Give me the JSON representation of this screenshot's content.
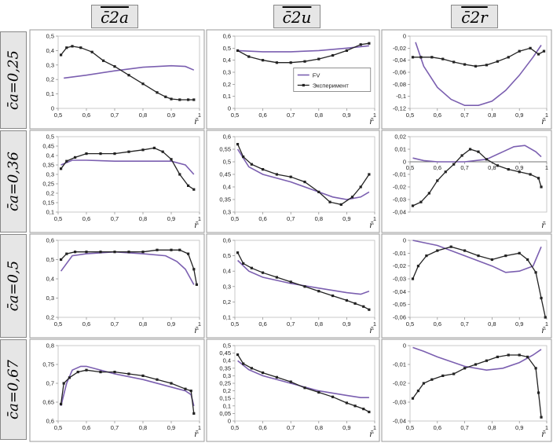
{
  "column_headers": [
    "c̄2a",
    "c̄2u",
    "c̄2r"
  ],
  "row_headers": [
    "c̄a=0,25",
    "c̄a=0,36",
    "c̄a=0,5",
    "c̄a=0,67"
  ],
  "colors": {
    "fv": "#7b5fb0",
    "experiment": "#222222",
    "frame": "#9a9a9a"
  },
  "chart_data": [
    {
      "type": "line",
      "row": 0,
      "col": 0,
      "xlabel": "r̄",
      "xlim": [
        0.5,
        1
      ],
      "ylim": [
        0,
        0.5
      ],
      "xticks": [
        "0,5",
        "0,6",
        "0,7",
        "0,8",
        "0,9",
        "1"
      ],
      "yticks": [
        "0",
        "0,1",
        "0,2",
        "0,3",
        "0,4",
        "0,5"
      ],
      "series": [
        {
          "name": "FV",
          "x": [
            0.52,
            0.6,
            0.7,
            0.8,
            0.9,
            0.95,
            0.98
          ],
          "y": [
            0.21,
            0.23,
            0.26,
            0.285,
            0.295,
            0.29,
            0.265
          ]
        },
        {
          "name": "Эксперимент",
          "x": [
            0.51,
            0.53,
            0.55,
            0.58,
            0.62,
            0.66,
            0.7,
            0.75,
            0.8,
            0.85,
            0.88,
            0.9,
            0.93,
            0.96,
            0.98
          ],
          "y": [
            0.37,
            0.42,
            0.43,
            0.42,
            0.39,
            0.33,
            0.29,
            0.23,
            0.17,
            0.11,
            0.08,
            0.065,
            0.06,
            0.06,
            0.06
          ]
        }
      ]
    },
    {
      "type": "line",
      "row": 0,
      "col": 1,
      "xlabel": "r̄",
      "xlim": [
        0.5,
        1
      ],
      "ylim": [
        0,
        0.6
      ],
      "xticks": [
        "0,5",
        "0,6",
        "0,7",
        "0,8",
        "0,9",
        "1"
      ],
      "yticks": [
        "0",
        "0,1",
        "0,2",
        "0,3",
        "0,4",
        "0,5",
        "0,6"
      ],
      "legend": {
        "position": "center",
        "entries": [
          "FV",
          "Эксперимент"
        ]
      },
      "series": [
        {
          "name": "FV",
          "x": [
            0.51,
            0.6,
            0.7,
            0.8,
            0.9,
            0.98
          ],
          "y": [
            0.48,
            0.47,
            0.47,
            0.48,
            0.5,
            0.52
          ]
        },
        {
          "name": "Эксперимент",
          "x": [
            0.51,
            0.55,
            0.6,
            0.65,
            0.7,
            0.75,
            0.8,
            0.85,
            0.9,
            0.95,
            0.98
          ],
          "y": [
            0.48,
            0.43,
            0.4,
            0.38,
            0.38,
            0.39,
            0.41,
            0.44,
            0.48,
            0.53,
            0.54
          ]
        }
      ]
    },
    {
      "type": "line",
      "row": 0,
      "col": 2,
      "xlabel": "r̄",
      "xlim": [
        0.5,
        1
      ],
      "ylim": [
        -0.12,
        0
      ],
      "xticks": [
        "0,5",
        "0,6",
        "0,7",
        "0,8",
        "0,9",
        "1"
      ],
      "yticks": [
        "0",
        "-0,02",
        "-0,04",
        "-0,06",
        "-0,08",
        "-0,1",
        "-0,12"
      ],
      "series": [
        {
          "name": "FV",
          "x": [
            0.52,
            0.55,
            0.6,
            0.65,
            0.7,
            0.75,
            0.8,
            0.85,
            0.9,
            0.95,
            0.98
          ],
          "y": [
            -0.01,
            -0.05,
            -0.085,
            -0.105,
            -0.115,
            -0.115,
            -0.108,
            -0.09,
            -0.065,
            -0.035,
            -0.015
          ]
        },
        {
          "name": "Эксперимент",
          "x": [
            0.51,
            0.54,
            0.58,
            0.62,
            0.66,
            0.7,
            0.74,
            0.78,
            0.82,
            0.86,
            0.9,
            0.94,
            0.97,
            0.99
          ],
          "y": [
            -0.035,
            -0.035,
            -0.035,
            -0.038,
            -0.043,
            -0.047,
            -0.05,
            -0.048,
            -0.042,
            -0.035,
            -0.025,
            -0.02,
            -0.03,
            -0.025
          ]
        }
      ]
    },
    {
      "type": "line",
      "row": 1,
      "col": 0,
      "xlabel": "r̄",
      "xlim": [
        0.5,
        1
      ],
      "ylim": [
        0.1,
        0.5
      ],
      "xticks": [
        "0,5",
        "0,6",
        "0,7",
        "0,8",
        "0,9",
        "1"
      ],
      "yticks": [
        "0,1",
        "0,15",
        "0,2",
        "0,25",
        "0,3",
        "0,35",
        "0,4",
        "0,45",
        "0,5"
      ],
      "series": [
        {
          "name": "FV",
          "x": [
            0.51,
            0.55,
            0.6,
            0.7,
            0.8,
            0.9,
            0.95,
            0.98
          ],
          "y": [
            0.35,
            0.375,
            0.375,
            0.37,
            0.37,
            0.37,
            0.35,
            0.3
          ]
        },
        {
          "name": "Эксперимент",
          "x": [
            0.51,
            0.53,
            0.56,
            0.6,
            0.65,
            0.7,
            0.75,
            0.8,
            0.84,
            0.87,
            0.9,
            0.93,
            0.96,
            0.98
          ],
          "y": [
            0.33,
            0.37,
            0.39,
            0.41,
            0.41,
            0.41,
            0.42,
            0.43,
            0.44,
            0.42,
            0.38,
            0.3,
            0.24,
            0.22
          ]
        }
      ]
    },
    {
      "type": "line",
      "row": 1,
      "col": 1,
      "xlabel": "r̄",
      "xlim": [
        0.5,
        1
      ],
      "ylim": [
        0.3,
        0.6
      ],
      "xticks": [
        "0,5",
        "0,6",
        "0,7",
        "0,8",
        "0,9",
        "1"
      ],
      "yticks": [
        "0,3",
        "0,35",
        "0,4",
        "0,45",
        "0,5",
        "0,55",
        "0,6"
      ],
      "series": [
        {
          "name": "FV",
          "x": [
            0.51,
            0.55,
            0.6,
            0.7,
            0.8,
            0.85,
            0.9,
            0.95,
            0.98
          ],
          "y": [
            0.55,
            0.48,
            0.45,
            0.42,
            0.38,
            0.36,
            0.35,
            0.36,
            0.38
          ]
        },
        {
          "name": "Эксперимент",
          "x": [
            0.51,
            0.53,
            0.56,
            0.6,
            0.65,
            0.7,
            0.75,
            0.8,
            0.84,
            0.88,
            0.92,
            0.95,
            0.98
          ],
          "y": [
            0.57,
            0.52,
            0.49,
            0.47,
            0.45,
            0.44,
            0.42,
            0.38,
            0.34,
            0.33,
            0.36,
            0.4,
            0.45
          ]
        }
      ]
    },
    {
      "type": "line",
      "row": 1,
      "col": 2,
      "xlabel": "r̄",
      "xlim": [
        0.5,
        1
      ],
      "ylim": [
        -0.04,
        0.02
      ],
      "xticks": [
        "0,5",
        "0,6",
        "0,7",
        "0,8",
        "0,9",
        "1"
      ],
      "yticks": [
        "0,02",
        "0,01",
        "0",
        "-0,01",
        "-0,02",
        "-0,03",
        "-0,04"
      ],
      "series": [
        {
          "name": "FV",
          "x": [
            0.51,
            0.55,
            0.6,
            0.7,
            0.78,
            0.84,
            0.88,
            0.92,
            0.96,
            0.98
          ],
          "y": [
            0.003,
            0.001,
            0,
            0,
            0.002,
            0.008,
            0.012,
            0.013,
            0.008,
            0.004
          ]
        },
        {
          "name": "Эксперимент",
          "x": [
            0.51,
            0.54,
            0.57,
            0.6,
            0.63,
            0.66,
            0.69,
            0.72,
            0.75,
            0.78,
            0.82,
            0.86,
            0.9,
            0.94,
            0.97,
            0.98
          ],
          "y": [
            -0.035,
            -0.032,
            -0.025,
            -0.015,
            -0.008,
            -0.002,
            0.005,
            0.01,
            0.008,
            0.002,
            -0.003,
            -0.006,
            -0.008,
            -0.01,
            -0.013,
            -0.02
          ]
        }
      ]
    },
    {
      "type": "line",
      "row": 2,
      "col": 0,
      "xlabel": "r̄",
      "xlim": [
        0.5,
        1
      ],
      "ylim": [
        0.2,
        0.6
      ],
      "xticks": [
        "0,5",
        "0,6",
        "0,7",
        "0,8",
        "0,9",
        "1"
      ],
      "yticks": [
        "0,2",
        "0,3",
        "0,4",
        "0,5",
        "0,6"
      ],
      "series": [
        {
          "name": "FV",
          "x": [
            0.51,
            0.55,
            0.6,
            0.7,
            0.8,
            0.88,
            0.92,
            0.95,
            0.98
          ],
          "y": [
            0.44,
            0.52,
            0.53,
            0.54,
            0.53,
            0.52,
            0.49,
            0.45,
            0.37
          ]
        },
        {
          "name": "Эксперимент",
          "x": [
            0.51,
            0.53,
            0.56,
            0.6,
            0.65,
            0.7,
            0.75,
            0.8,
            0.85,
            0.9,
            0.93,
            0.96,
            0.98,
            0.99
          ],
          "y": [
            0.5,
            0.53,
            0.54,
            0.54,
            0.54,
            0.54,
            0.54,
            0.54,
            0.55,
            0.55,
            0.55,
            0.53,
            0.45,
            0.37
          ]
        }
      ]
    },
    {
      "type": "line",
      "row": 2,
      "col": 1,
      "xlabel": "r̄",
      "xlim": [
        0.5,
        1
      ],
      "ylim": [
        0.1,
        0.6
      ],
      "xticks": [
        "0,5",
        "0,6",
        "0,7",
        "0,8",
        "0,9",
        "1"
      ],
      "yticks": [
        "0,1",
        "0,2",
        "0,3",
        "0,4",
        "0,5",
        "0,6"
      ],
      "series": [
        {
          "name": "FV",
          "x": [
            0.51,
            0.55,
            0.6,
            0.7,
            0.8,
            0.9,
            0.95,
            0.98
          ],
          "y": [
            0.47,
            0.4,
            0.36,
            0.32,
            0.29,
            0.26,
            0.25,
            0.27
          ]
        },
        {
          "name": "Эксперимент",
          "x": [
            0.51,
            0.53,
            0.56,
            0.6,
            0.65,
            0.7,
            0.75,
            0.8,
            0.85,
            0.9,
            0.93,
            0.96,
            0.98
          ],
          "y": [
            0.52,
            0.45,
            0.42,
            0.39,
            0.36,
            0.33,
            0.3,
            0.27,
            0.24,
            0.21,
            0.19,
            0.17,
            0.15
          ]
        }
      ]
    },
    {
      "type": "line",
      "row": 2,
      "col": 2,
      "xlabel": "r̄",
      "xlim": [
        0.5,
        1
      ],
      "ylim": [
        -0.06,
        0
      ],
      "xticks": [
        "0,5",
        "0,6",
        "0,7",
        "0,8",
        "0,9",
        "1"
      ],
      "yticks": [
        "0",
        "-0,01",
        "-0,02",
        "-0,03",
        "-0,04",
        "-0,05",
        "-0,06"
      ],
      "series": [
        {
          "name": "FV",
          "x": [
            0.51,
            0.6,
            0.7,
            0.8,
            0.85,
            0.9,
            0.95,
            0.98
          ],
          "y": [
            0,
            -0.004,
            -0.012,
            -0.02,
            -0.025,
            -0.024,
            -0.02,
            -0.005
          ]
        },
        {
          "name": "Эксперимент",
          "x": [
            0.51,
            0.53,
            0.56,
            0.6,
            0.65,
            0.7,
            0.75,
            0.8,
            0.85,
            0.9,
            0.93,
            0.96,
            0.98,
            0.995
          ],
          "y": [
            -0.03,
            -0.02,
            -0.012,
            -0.008,
            -0.005,
            -0.008,
            -0.012,
            -0.015,
            -0.012,
            -0.01,
            -0.015,
            -0.025,
            -0.045,
            -0.06
          ]
        }
      ]
    },
    {
      "type": "line",
      "row": 3,
      "col": 0,
      "xlabel": "r̄",
      "xlim": [
        0.5,
        1
      ],
      "ylim": [
        0.6,
        0.8
      ],
      "xticks": [
        "0,5",
        "0,6",
        "0,7",
        "0,8",
        "0,9",
        "1"
      ],
      "yticks": [
        "0,6",
        "0,65",
        "0,7",
        "0,75",
        "0,8"
      ],
      "series": [
        {
          "name": "FV",
          "x": [
            0.51,
            0.53,
            0.55,
            0.58,
            0.6,
            0.65,
            0.7,
            0.8,
            0.9,
            0.95,
            0.97,
            0.98
          ],
          "y": [
            0.64,
            0.7,
            0.735,
            0.745,
            0.745,
            0.735,
            0.725,
            0.71,
            0.69,
            0.68,
            0.67,
            0.64
          ]
        },
        {
          "name": "Эксперимент",
          "x": [
            0.51,
            0.52,
            0.54,
            0.57,
            0.6,
            0.65,
            0.7,
            0.75,
            0.8,
            0.85,
            0.9,
            0.95,
            0.97,
            0.98
          ],
          "y": [
            0.645,
            0.7,
            0.715,
            0.73,
            0.735,
            0.73,
            0.73,
            0.725,
            0.72,
            0.71,
            0.7,
            0.685,
            0.68,
            0.62
          ]
        }
      ]
    },
    {
      "type": "line",
      "row": 3,
      "col": 1,
      "xlabel": "r̄",
      "xlim": [
        0.5,
        1
      ],
      "ylim": [
        0,
        0.5
      ],
      "xticks": [
        "0,5",
        "0,6",
        "0,7",
        "0,8",
        "0,9",
        "1"
      ],
      "yticks": [
        "0",
        "0,05",
        "0,1",
        "0,15",
        "0,2",
        "0,25",
        "0,3",
        "0,35",
        "0,4",
        "0,45",
        "0,5"
      ],
      "series": [
        {
          "name": "FV",
          "x": [
            0.51,
            0.55,
            0.6,
            0.7,
            0.8,
            0.9,
            0.95,
            0.98
          ],
          "y": [
            0.4,
            0.34,
            0.3,
            0.25,
            0.2,
            0.17,
            0.155,
            0.155
          ]
        },
        {
          "name": "Эксперимент",
          "x": [
            0.51,
            0.53,
            0.56,
            0.6,
            0.65,
            0.7,
            0.75,
            0.8,
            0.85,
            0.9,
            0.93,
            0.96,
            0.98
          ],
          "y": [
            0.44,
            0.38,
            0.35,
            0.32,
            0.29,
            0.26,
            0.22,
            0.19,
            0.16,
            0.12,
            0.1,
            0.08,
            0.06
          ]
        }
      ]
    },
    {
      "type": "line",
      "row": 3,
      "col": 2,
      "xlabel": "r̄",
      "xlim": [
        0.5,
        1
      ],
      "ylim": [
        -0.04,
        0
      ],
      "xticks": [
        "0,5",
        "0,6",
        "0,7",
        "0,8",
        "0,9",
        "1"
      ],
      "yticks": [
        "0",
        "-0,01",
        "-0,02",
        "-0,03",
        "-0,04"
      ],
      "series": [
        {
          "name": "FV",
          "x": [
            0.51,
            0.55,
            0.6,
            0.7,
            0.78,
            0.84,
            0.9,
            0.95,
            0.98
          ],
          "y": [
            -0.001,
            -0.003,
            -0.006,
            -0.011,
            -0.013,
            -0.012,
            -0.009,
            -0.005,
            -0.002
          ]
        },
        {
          "name": "Эксперимент",
          "x": [
            0.51,
            0.53,
            0.55,
            0.58,
            0.62,
            0.66,
            0.7,
            0.74,
            0.78,
            0.82,
            0.86,
            0.9,
            0.93,
            0.96,
            0.97,
            0.98
          ],
          "y": [
            -0.028,
            -0.024,
            -0.02,
            -0.018,
            -0.016,
            -0.015,
            -0.012,
            -0.01,
            -0.008,
            -0.006,
            -0.005,
            -0.005,
            -0.006,
            -0.012,
            -0.025,
            -0.038
          ]
        }
      ]
    }
  ]
}
